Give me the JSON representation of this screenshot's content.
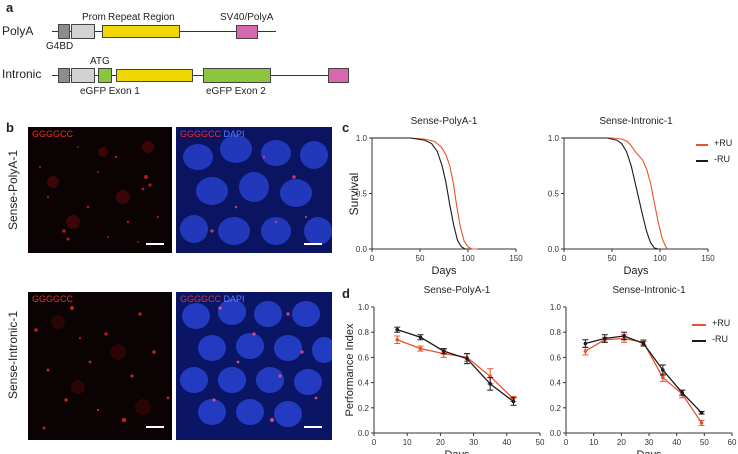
{
  "panel_a": {
    "letter": "a",
    "rows": {
      "polya": "PolyA",
      "intronic": "Intronic"
    },
    "labels": {
      "prom": "Prom",
      "repeat_region": "Repeat Region",
      "sv40": "SV40/PolyA",
      "g4bd": "G4BD",
      "atg": "ATG",
      "exon1": "eGFP Exon 1",
      "exon2": "eGFP Exon 2"
    },
    "colors": {
      "gray_dark": "#8c8c8c",
      "gray_light": "#d2d2d2",
      "yellow": "#f2d600",
      "green": "#8cc63f",
      "pink": "#d768b0"
    }
  },
  "panel_b": {
    "letter": "b",
    "rows": [
      "Sense-PolyA-1",
      "Sense-Intronic-1"
    ],
    "channel_red": "GGGGCC",
    "channel_blue": "DAPI",
    "colors": {
      "red": "#e0302a",
      "blue": "#2f5cff"
    }
  },
  "panel_c": {
    "letter": "c",
    "ylabel": "Survival",
    "xlabel": "Days",
    "legend": {
      "ru_plus": "+RU",
      "ru_minus": "-RU"
    }
  },
  "panel_d": {
    "letter": "d",
    "ylabel": "Performance Index",
    "xlabel": "Days",
    "legend": {
      "ru_plus": "+RU",
      "ru_minus": "-RU"
    }
  },
  "colors": {
    "plus_ru": "#e8532e",
    "minus_ru": "#1a1a1a"
  },
  "chart_data": [
    {
      "type": "line",
      "title": "Sense-PolyA-1",
      "xlabel": "Days",
      "ylabel": "Survival",
      "xlim": [
        0,
        150
      ],
      "ylim": [
        0,
        1.0
      ],
      "xticks": [
        0,
        50,
        100,
        150
      ],
      "yticks": [
        0.0,
        0.5,
        1.0
      ],
      "series": [
        {
          "name": "+RU",
          "x": [
            0,
            40,
            55,
            65,
            72,
            77,
            81,
            85,
            88,
            92,
            96,
            100,
            104,
            110
          ],
          "y": [
            1.0,
            1.0,
            0.99,
            0.97,
            0.92,
            0.85,
            0.75,
            0.58,
            0.4,
            0.2,
            0.07,
            0.02,
            0.0,
            0.0
          ]
        },
        {
          "name": "-RU",
          "x": [
            0,
            40,
            55,
            62,
            68,
            73,
            77,
            81,
            85,
            89,
            93,
            97,
            100
          ],
          "y": [
            1.0,
            1.0,
            0.98,
            0.95,
            0.88,
            0.75,
            0.6,
            0.4,
            0.22,
            0.08,
            0.02,
            0.0,
            0.0
          ]
        }
      ]
    },
    {
      "type": "line",
      "title": "Sense-Intronic-1",
      "xlabel": "Days",
      "ylabel": "",
      "xlim": [
        0,
        150
      ],
      "ylim": [
        0,
        1.0
      ],
      "xticks": [
        0,
        50,
        100,
        150
      ],
      "yticks": [
        0.0,
        0.5,
        1.0
      ],
      "series": [
        {
          "name": "+RU",
          "x": [
            0,
            50,
            60,
            66,
            70,
            74,
            78,
            82,
            86,
            90,
            94,
            98,
            102,
            106,
            108
          ],
          "y": [
            1.0,
            1.0,
            0.99,
            0.97,
            0.93,
            0.88,
            0.84,
            0.8,
            0.72,
            0.6,
            0.42,
            0.25,
            0.1,
            0.02,
            0.0
          ]
        },
        {
          "name": "-RU",
          "x": [
            0,
            45,
            55,
            60,
            65,
            70,
            74,
            78,
            82,
            86,
            90,
            94,
            98
          ],
          "y": [
            1.0,
            1.0,
            0.98,
            0.95,
            0.88,
            0.75,
            0.6,
            0.45,
            0.3,
            0.16,
            0.06,
            0.01,
            0.0
          ]
        }
      ]
    },
    {
      "type": "line",
      "title": "Sense-PolyA-1",
      "xlabel": "Days",
      "ylabel": "Performance Index",
      "xlim": [
        0,
        50
      ],
      "ylim": [
        0,
        1.0
      ],
      "xticks": [
        0,
        10,
        20,
        30,
        40,
        50
      ],
      "yticks": [
        0.0,
        0.2,
        0.4,
        0.6,
        0.8,
        1.0
      ],
      "series": [
        {
          "name": "+RU",
          "x": [
            7,
            14,
            21,
            28,
            35,
            42
          ],
          "y": [
            0.74,
            0.67,
            0.63,
            0.6,
            0.45,
            0.27
          ],
          "err": [
            0.03,
            0.02,
            0.03,
            0.03,
            0.06,
            0.02
          ]
        },
        {
          "name": "-RU",
          "x": [
            7,
            14,
            21,
            28,
            35,
            42
          ],
          "y": [
            0.82,
            0.76,
            0.65,
            0.59,
            0.39,
            0.25
          ],
          "err": [
            0.02,
            0.02,
            0.02,
            0.04,
            0.05,
            0.03
          ]
        }
      ]
    },
    {
      "type": "line",
      "title": "Sense-Intronic-1",
      "xlabel": "Days",
      "ylabel": "",
      "xlim": [
        0,
        60
      ],
      "ylim": [
        0,
        1.0
      ],
      "xticks": [
        0,
        10,
        20,
        30,
        40,
        50,
        60
      ],
      "yticks": [
        0.0,
        0.2,
        0.4,
        0.6,
        0.8,
        1.0
      ],
      "series": [
        {
          "name": "+RU",
          "x": [
            7,
            14,
            21,
            28,
            35,
            42,
            49
          ],
          "y": [
            0.65,
            0.74,
            0.75,
            0.72,
            0.44,
            0.31,
            0.08
          ],
          "err": [
            0.03,
            0.02,
            0.03,
            0.02,
            0.03,
            0.03,
            0.02
          ]
        },
        {
          "name": "-RU",
          "x": [
            7,
            14,
            21,
            28,
            35,
            42,
            49
          ],
          "y": [
            0.71,
            0.75,
            0.77,
            0.71,
            0.5,
            0.32,
            0.16
          ],
          "err": [
            0.03,
            0.03,
            0.03,
            0.02,
            0.04,
            0.02,
            0.01
          ]
        }
      ]
    }
  ]
}
